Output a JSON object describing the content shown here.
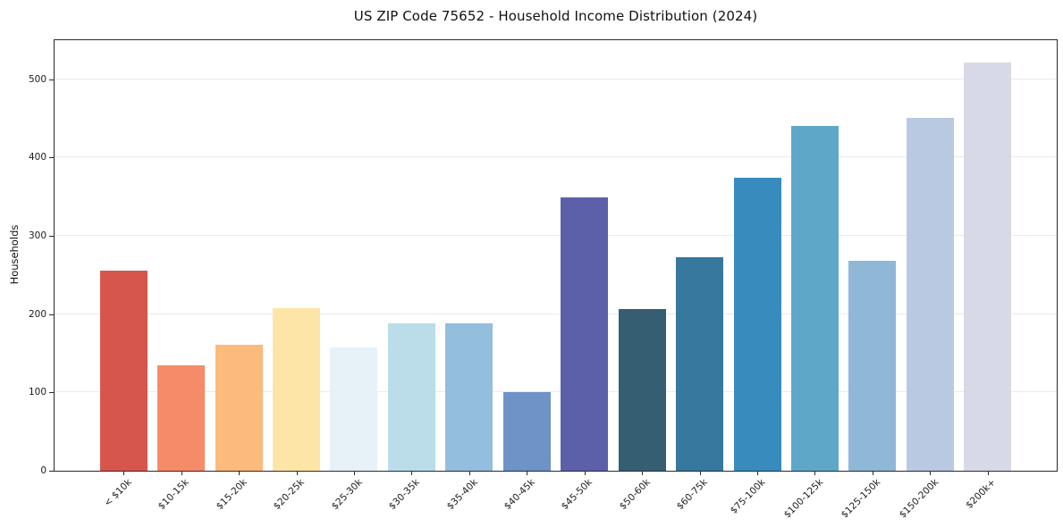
{
  "chart_data": {
    "type": "bar",
    "title": "US ZIP Code 75652 - Household Income Distribution (2024)",
    "xlabel": "",
    "ylabel": "Households",
    "categories": [
      "< $10k",
      "$10-15k",
      "$15-20k",
      "$20-25k",
      "$25-30k",
      "$30-35k",
      "$35-40k",
      "$40-45k",
      "$45-50k",
      "$50-60k",
      "$60-75k",
      "$75-100k",
      "$100-125k",
      "$125-150k",
      "$150-200k",
      "$200k+"
    ],
    "values": [
      256,
      135,
      161,
      208,
      157,
      188,
      188,
      100,
      349,
      207,
      273,
      374,
      440,
      268,
      451,
      521
    ],
    "colors": [
      "#d6564e",
      "#f58b68",
      "#fcba7d",
      "#fde5a7",
      "#e7f1f8",
      "#badde9",
      "#93bedd",
      "#6d93c7",
      "#5c60a9",
      "#355e73",
      "#37789e",
      "#388cbd",
      "#5ea7c9",
      "#8fb7d6",
      "#b9c9e1",
      "#d8d9e8"
    ],
    "ylim": [
      0,
      550
    ],
    "yticks": [
      0,
      100,
      200,
      300,
      400,
      500
    ],
    "grid": "horizontal",
    "legend": "none",
    "x_tick_rotation": 45,
    "background": "#ffffff",
    "spine_color": "#2a2a2a",
    "gridline_color": "#e9e9ef"
  }
}
